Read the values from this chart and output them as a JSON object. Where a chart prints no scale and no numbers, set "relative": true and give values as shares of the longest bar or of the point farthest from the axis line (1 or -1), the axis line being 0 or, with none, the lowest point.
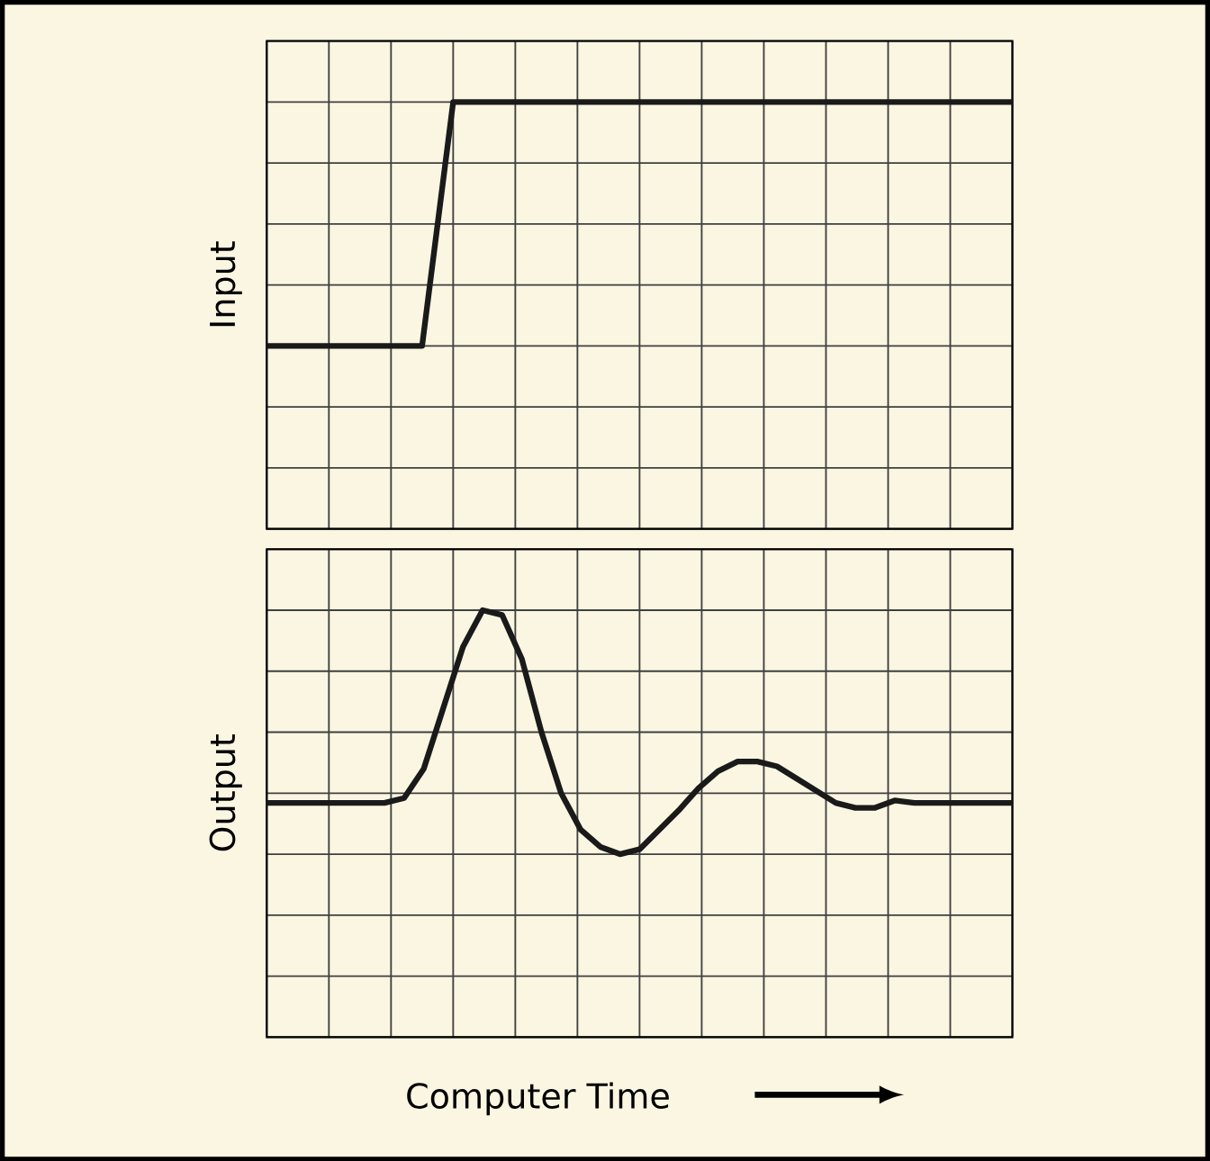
{
  "chart_data": [
    {
      "type": "line",
      "ylabel": "Input",
      "relative": true,
      "grid": true,
      "categories": [
        null,
        null,
        null,
        null,
        null,
        null,
        null,
        null,
        null,
        null,
        null,
        null,
        null,
        null,
        null,
        null,
        null,
        null,
        null,
        null,
        null,
        null,
        null,
        null,
        null
      ],
      "series": [
        {
          "color": "#1a1a1a",
          "values": [
            0,
            0,
            0,
            0,
            0,
            0,
            1,
            1,
            1,
            1,
            1,
            1,
            1,
            1,
            1,
            1,
            1,
            1,
            1,
            1,
            1,
            1,
            1,
            1,
            1
          ]
        }
      ]
    },
    {
      "type": "line",
      "ylabel": "Output",
      "xlabel": "Computer Time",
      "relative": true,
      "grid": true,
      "categories": [
        null,
        null,
        null,
        null,
        null,
        null,
        null,
        null,
        null,
        null,
        null,
        null,
        null,
        null,
        null,
        null,
        null,
        null,
        null,
        null,
        null,
        null,
        null,
        null,
        null,
        null,
        null,
        null,
        null,
        null,
        null,
        null,
        null,
        null,
        null,
        null,
        null,
        null,
        null
      ],
      "series": [
        {
          "color": "#1a1a1a",
          "values": [
            0.21,
            0.21,
            0.21,
            0.21,
            0.21,
            0.21,
            0.21,
            0.23,
            0.35,
            0.6,
            0.85,
            1,
            0.98,
            0.8,
            0.5,
            0.25,
            0.1,
            0.03,
            0,
            0.02,
            0.1,
            0.18,
            0.27,
            0.34,
            0.38,
            0.38,
            0.36,
            0.31,
            0.26,
            0.21,
            0.19,
            0.19,
            0.22,
            0.21,
            0.21,
            0.21,
            0.21,
            0.21,
            0.21
          ]
        }
      ]
    }
  ]
}
